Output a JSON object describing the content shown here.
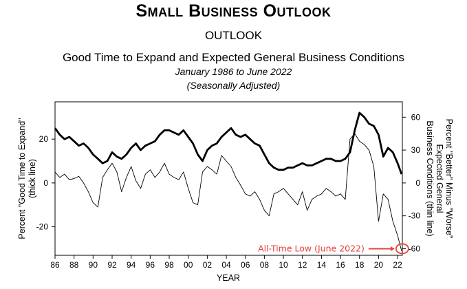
{
  "header": {
    "title": "Small Business Outlook",
    "section": "OUTLOOK",
    "chart_title": "Good Time to Expand and Expected General Business Conditions",
    "date_range": "January 1986 to June 2022",
    "seasonal": "(Seasonally Adjusted)"
  },
  "colors": {
    "line": "#000000",
    "annotation": "#e8403a"
  },
  "chart_data": {
    "type": "line",
    "title": "Good Time to Expand and Expected General Business Conditions",
    "xlabel": "YEAR",
    "ylabel_left": [
      "Percent \"Good Time to Expand\"",
      "(thick line)"
    ],
    "ylabel_right": [
      "Percent \"Better\" Minus \"Worse\"",
      "Expected General",
      "Business Conditions (thin line)"
    ],
    "x_range": [
      1986,
      2022.5
    ],
    "x_ticks": [
      1986,
      1988,
      1990,
      1992,
      1994,
      1996,
      1998,
      2000,
      2002,
      2004,
      2006,
      2008,
      2010,
      2012,
      2014,
      2016,
      2018,
      2020,
      2022
    ],
    "x_tick_labels": [
      "86",
      "88",
      "90",
      "92",
      "94",
      "96",
      "98",
      "00",
      "02",
      "04",
      "06",
      "08",
      "10",
      "12",
      "14",
      "16",
      "18",
      "20",
      "22"
    ],
    "y_left_range": [
      -33,
      37
    ],
    "y_left_ticks": [
      -20,
      0,
      20
    ],
    "y_right_range": [
      -66,
      74
    ],
    "y_right_ticks": [
      -60,
      -30,
      0,
      30,
      60
    ],
    "legend": "none",
    "grid": false,
    "series": [
      {
        "axis": "left",
        "style": "thick",
        "x": [
          1986.0,
          1986.5,
          1987.0,
          1987.5,
          1988.0,
          1988.5,
          1989.0,
          1989.5,
          1990.0,
          1990.5,
          1991.0,
          1991.5,
          1992.0,
          1992.5,
          1993.0,
          1993.5,
          1994.0,
          1994.5,
          1995.0,
          1995.5,
          1996.0,
          1996.5,
          1997.0,
          1997.5,
          1998.0,
          1998.5,
          1999.0,
          1999.5,
          2000.0,
          2000.5,
          2001.0,
          2001.5,
          2002.0,
          2002.5,
          2003.0,
          2003.5,
          2004.0,
          2004.5,
          2005.0,
          2005.5,
          2006.0,
          2006.5,
          2007.0,
          2007.5,
          2008.0,
          2008.5,
          2009.0,
          2009.5,
          2010.0,
          2010.5,
          2011.0,
          2011.5,
          2012.0,
          2012.5,
          2013.0,
          2013.5,
          2014.0,
          2014.5,
          2015.0,
          2015.5,
          2016.0,
          2016.5,
          2017.0,
          2017.5,
          2018.0,
          2018.5,
          2019.0,
          2019.5,
          2020.0,
          2020.5,
          2021.0,
          2021.5,
          2022.0,
          2022.42
        ],
        "y": [
          25,
          22,
          20,
          21,
          19,
          17,
          18,
          16,
          13,
          11,
          9,
          10,
          14,
          12,
          11,
          13,
          16,
          18,
          15,
          17,
          18,
          19,
          22,
          24,
          24,
          23,
          22,
          24,
          21,
          18,
          13,
          10,
          15,
          17,
          18,
          21,
          23,
          25,
          22,
          21,
          22,
          20,
          18,
          17,
          13,
          9,
          7,
          6,
          6,
          7,
          7,
          8,
          9,
          8,
          8,
          9,
          10,
          11,
          11,
          10,
          10,
          11,
          14,
          24,
          32,
          30,
          27,
          26,
          22,
          12,
          16,
          14,
          9,
          4
        ]
      },
      {
        "axis": "right",
        "style": "thin",
        "x": [
          1986.0,
          1986.5,
          1987.0,
          1987.5,
          1988.0,
          1988.5,
          1989.0,
          1989.5,
          1990.0,
          1990.5,
          1991.0,
          1991.5,
          1992.0,
          1992.5,
          1993.0,
          1993.5,
          1994.0,
          1994.5,
          1995.0,
          1995.5,
          1996.0,
          1996.5,
          1997.0,
          1997.5,
          1998.0,
          1998.5,
          1999.0,
          1999.5,
          2000.0,
          2000.5,
          2001.0,
          2001.5,
          2002.0,
          2002.5,
          2003.0,
          2003.5,
          2004.0,
          2004.5,
          2005.0,
          2005.5,
          2006.0,
          2006.5,
          2007.0,
          2007.5,
          2008.0,
          2008.5,
          2009.0,
          2009.5,
          2010.0,
          2010.5,
          2011.0,
          2011.5,
          2012.0,
          2012.5,
          2013.0,
          2013.5,
          2014.0,
          2014.5,
          2015.0,
          2015.5,
          2016.0,
          2016.5,
          2017.0,
          2017.5,
          2018.0,
          2018.5,
          2019.0,
          2019.5,
          2020.0,
          2020.5,
          2021.0,
          2021.5,
          2022.0,
          2022.42
        ],
        "y": [
          10,
          5,
          8,
          3,
          4,
          6,
          0,
          -8,
          -18,
          -22,
          5,
          12,
          18,
          10,
          -8,
          5,
          15,
          2,
          -5,
          8,
          12,
          5,
          10,
          18,
          8,
          5,
          3,
          10,
          -5,
          -18,
          -20,
          10,
          15,
          12,
          8,
          25,
          20,
          15,
          5,
          -2,
          -10,
          -12,
          -8,
          -15,
          -25,
          -30,
          -10,
          -8,
          -5,
          -10,
          -15,
          -20,
          -8,
          -25,
          -15,
          -12,
          -10,
          -5,
          -8,
          -12,
          -10,
          -15,
          40,
          45,
          38,
          35,
          30,
          15,
          -35,
          -10,
          -15,
          -35,
          -48,
          -62
        ]
      }
    ],
    "annotations": [
      {
        "text": "All-Time Low (June 2022)",
        "x": 2022.42,
        "y_right": -60
      }
    ]
  }
}
